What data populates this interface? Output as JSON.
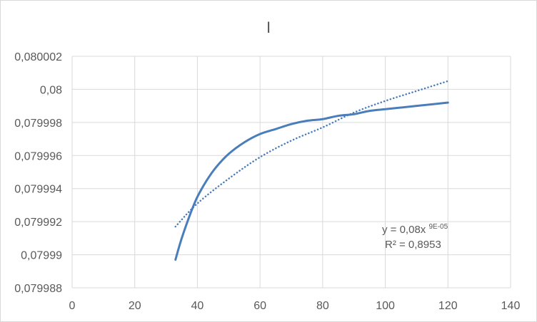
{
  "chart_data": {
    "type": "line",
    "title": "I",
    "xlabel": "",
    "ylabel": "",
    "xlim": [
      0,
      140
    ],
    "ylim": [
      0.079988,
      0.080002
    ],
    "x_ticks": [
      "0",
      "20",
      "40",
      "60",
      "80",
      "100",
      "120",
      "140"
    ],
    "y_ticks": [
      "0,079988",
      "0,07999",
      "0,079992",
      "0,079994",
      "0,079996",
      "0,079998",
      "0,08",
      "0,080002"
    ],
    "grid": true,
    "series": [
      {
        "style": "solid",
        "color": "#4a7ebb",
        "x": [
          33,
          35,
          38,
          40,
          43,
          46,
          50,
          55,
          60,
          65,
          70,
          75,
          80,
          85,
          90,
          95,
          100,
          105,
          110,
          115,
          120
        ],
        "y": [
          0.0799897,
          0.079991,
          0.0799926,
          0.0799935,
          0.0799945,
          0.0799953,
          0.0799961,
          0.0799968,
          0.0799973,
          0.0799976,
          0.0799979,
          0.0799981,
          0.0799982,
          0.0799984,
          0.0799985,
          0.0799987,
          0.0799988,
          0.0799989,
          0.079999,
          0.0799991,
          0.0799992
        ]
      },
      {
        "style": "dotted",
        "color": "#4a7ebb",
        "trendline": "power",
        "x": [
          33,
          40,
          50,
          60,
          70,
          80,
          90,
          100,
          110,
          120
        ],
        "y": [
          0.0799917,
          0.0799931,
          0.0799946,
          0.0799959,
          0.0799969,
          0.0799977,
          0.0799986,
          0.0799993,
          0.0799999,
          0.0800005
        ]
      }
    ],
    "annotations": {
      "equation_base": "y = 0,08x",
      "equation_exp": "9E-05",
      "r_squared": "R² = 0,8953"
    }
  }
}
